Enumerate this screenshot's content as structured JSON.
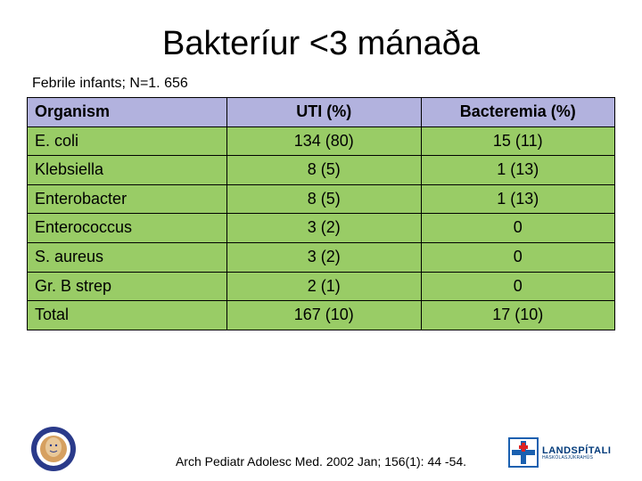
{
  "title": "Bakteríur <3 mánaða",
  "subtitle": "Febrile infants; N=1. 656",
  "table": {
    "header_bg": "#b2b2de",
    "body_bg": "#99cc66",
    "columns": [
      "Organism",
      "UTI (%)",
      "Bacteremia (%)"
    ],
    "rows": [
      {
        "organism": "E. coli",
        "uti": "134 (80)",
        "bacteremia": "15 (11)"
      },
      {
        "organism": "Klebsiella",
        "uti": "8 (5)",
        "bacteremia": "1 (13)"
      },
      {
        "organism": "Enterobacter",
        "uti": "8 (5)",
        "bacteremia": "1 (13)"
      },
      {
        "organism": "Enterococcus",
        "uti": "3 (2)",
        "bacteremia": "0"
      },
      {
        "organism": "S. aureus",
        "uti": "3 (2)",
        "bacteremia": "0"
      },
      {
        "organism": "Gr. B strep",
        "uti": "2 (1)",
        "bacteremia": "0"
      },
      {
        "organism": "Total",
        "uti": "167 (10)",
        "bacteremia": "17 (10)"
      }
    ]
  },
  "citation": "Arch Pediatr Adolesc Med. 2002 Jan; 156(1): 44 -54.",
  "logos": {
    "left_colors": {
      "ring_outer": "#2a3a8a",
      "ring_inner": "#ffffff",
      "center": "#d6a060"
    },
    "right": {
      "text": "LANDSPÍTALI",
      "sub": "HÁSKÓLASJÚKRAHÚS",
      "cross": "#d22",
      "plus": "#1a60b0",
      "border": "#1a60b0"
    }
  }
}
